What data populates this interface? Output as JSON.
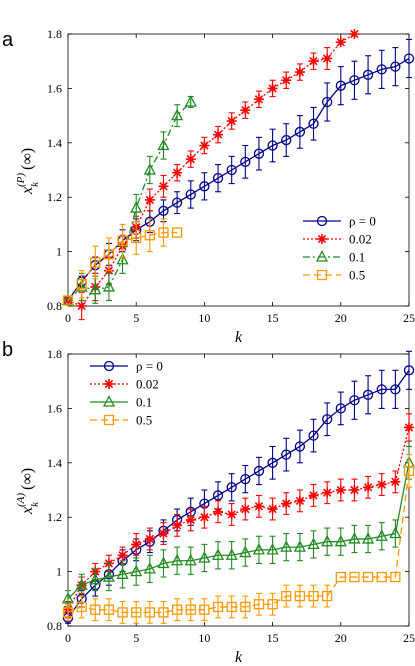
{
  "chart_data": [
    {
      "type": "line",
      "panel": "a",
      "xlabel": "k",
      "ylabel": "x_k^(P)(∞)",
      "ylabel_parts": {
        "base": "x",
        "sub": "k",
        "sup": "(P)",
        "tail": "(∞)"
      },
      "xlim": [
        0,
        25
      ],
      "ylim": [
        0.8,
        1.8
      ],
      "xticks": [
        0,
        5,
        10,
        15,
        20,
        25
      ],
      "yticks": [
        0.8,
        1,
        1.2,
        1.4,
        1.6,
        1.8
      ],
      "xtick_labels": [
        "0",
        "5",
        "10",
        "15",
        "20",
        "25"
      ],
      "ytick_labels": [
        "0.8",
        "1",
        "1.2",
        "1.4",
        "1.6",
        "1.8"
      ],
      "grid": false,
      "legend_position": "bottom-right",
      "series": [
        {
          "name": "ρ = 0",
          "color": "#00008b",
          "dash": "solid",
          "marker": "circle",
          "x": [
            0,
            1,
            2,
            3,
            4,
            5,
            6,
            7,
            8,
            9,
            10,
            11,
            12,
            13,
            14,
            15,
            16,
            17,
            18,
            19,
            20,
            21,
            22,
            23,
            24,
            25
          ],
          "y": [
            0.82,
            0.89,
            0.95,
            0.99,
            1.04,
            1.08,
            1.11,
            1.15,
            1.18,
            1.21,
            1.24,
            1.27,
            1.3,
            1.33,
            1.36,
            1.39,
            1.41,
            1.44,
            1.47,
            1.55,
            1.61,
            1.63,
            1.65,
            1.67,
            1.68,
            1.71
          ],
          "err": [
            0,
            0.02,
            0.03,
            0.04,
            0.04,
            0.04,
            0.04,
            0.04,
            0.04,
            0.05,
            0.05,
            0.05,
            0.05,
            0.06,
            0.06,
            0.06,
            0.06,
            0.06,
            0.06,
            0.07,
            0.07,
            0.07,
            0.07,
            0.07,
            0.07,
            0.07
          ]
        },
        {
          "name": "0.02",
          "color": "#ff0000",
          "dash": "dotted",
          "marker": "asterisk",
          "x": [
            0,
            1,
            2,
            3,
            4,
            5,
            6,
            7,
            8,
            9,
            10,
            11,
            12,
            13,
            14,
            15,
            16,
            17,
            18,
            19,
            20,
            21
          ],
          "y": [
            0.82,
            0.8,
            0.87,
            0.93,
            1.02,
            1.09,
            1.19,
            1.24,
            1.29,
            1.34,
            1.39,
            1.43,
            1.48,
            1.52,
            1.56,
            1.6,
            1.63,
            1.66,
            1.7,
            1.71,
            1.77,
            1.8
          ],
          "err": [
            0,
            0.05,
            0.05,
            0.05,
            0.04,
            0.04,
            0.04,
            0.04,
            0.03,
            0.03,
            0.03,
            0.03,
            0.03,
            0.03,
            0.03,
            0.03,
            0.03,
            0.03,
            0.03,
            0.04,
            0,
            0
          ]
        },
        {
          "name": "0.1",
          "color": "#228b22",
          "dash": "dashdot",
          "marker": "triangle",
          "x": [
            0,
            1,
            2,
            3,
            4,
            5,
            6,
            7,
            8,
            9
          ],
          "y": [
            0.82,
            0.87,
            0.86,
            0.87,
            0.97,
            1.16,
            1.3,
            1.39,
            1.5,
            1.55
          ],
          "err": [
            0,
            0.05,
            0.05,
            0.05,
            0.05,
            0.05,
            0.05,
            0.05,
            0.04,
            0.02
          ]
        },
        {
          "name": "0.5",
          "color": "#ff9900",
          "dash": "dashed",
          "marker": "square",
          "x": [
            0,
            1,
            2,
            3,
            4,
            5,
            6,
            7,
            8
          ],
          "y": [
            0.82,
            0.88,
            0.96,
            0.99,
            1.04,
            1.05,
            1.06,
            1.07,
            1.07
          ],
          "err": [
            0,
            0.05,
            0.06,
            0.06,
            0.06,
            0.06,
            0.06,
            0.05,
            0
          ]
        }
      ]
    },
    {
      "type": "line",
      "panel": "b",
      "xlabel": "k",
      "ylabel": "x_k^(A)(∞)",
      "ylabel_parts": {
        "base": "x",
        "sub": "k",
        "sup": "(A)",
        "tail": "(∞)"
      },
      "xlim": [
        0,
        25
      ],
      "ylim": [
        0.8,
        1.8
      ],
      "xticks": [
        0,
        5,
        10,
        15,
        20,
        25
      ],
      "yticks": [
        0.8,
        1,
        1.2,
        1.4,
        1.6,
        1.8
      ],
      "xtick_labels": [
        "0",
        "5",
        "10",
        "15",
        "20",
        "25"
      ],
      "ytick_labels": [
        "0.8",
        "1",
        "1.2",
        "1.4",
        "1.6",
        "1.8"
      ],
      "grid": false,
      "legend_position": "top-left",
      "series": [
        {
          "name": "ρ = 0",
          "color": "#00008b",
          "dash": "solid",
          "marker": "circle",
          "x": [
            0,
            1,
            2,
            3,
            4,
            5,
            6,
            7,
            8,
            9,
            10,
            11,
            12,
            13,
            14,
            15,
            16,
            17,
            18,
            19,
            20,
            21,
            22,
            23,
            24,
            25
          ],
          "y": [
            0.83,
            0.9,
            0.95,
            0.99,
            1.04,
            1.08,
            1.11,
            1.15,
            1.19,
            1.22,
            1.25,
            1.28,
            1.31,
            1.34,
            1.37,
            1.4,
            1.43,
            1.46,
            1.5,
            1.56,
            1.6,
            1.63,
            1.65,
            1.67,
            1.67,
            1.74
          ],
          "err": [
            0.02,
            0.03,
            0.04,
            0.04,
            0.04,
            0.04,
            0.04,
            0.04,
            0.04,
            0.05,
            0.05,
            0.05,
            0.05,
            0.05,
            0.05,
            0.06,
            0.06,
            0.06,
            0.06,
            0.06,
            0.06,
            0.07,
            0.07,
            0.07,
            0.07,
            0.07
          ]
        },
        {
          "name": "0.02",
          "color": "#ff0000",
          "dash": "dotted",
          "marker": "asterisk",
          "x": [
            0,
            1,
            2,
            3,
            4,
            5,
            6,
            7,
            8,
            9,
            10,
            11,
            12,
            13,
            14,
            15,
            16,
            17,
            18,
            19,
            20,
            21,
            22,
            23,
            24,
            25
          ],
          "y": [
            0.86,
            0.95,
            1.0,
            1.03,
            1.06,
            1.1,
            1.12,
            1.14,
            1.17,
            1.19,
            1.2,
            1.22,
            1.21,
            1.23,
            1.24,
            1.23,
            1.25,
            1.26,
            1.28,
            1.29,
            1.3,
            1.3,
            1.31,
            1.32,
            1.33,
            1.53
          ],
          "err": [
            0.03,
            0.03,
            0.03,
            0.03,
            0.03,
            0.04,
            0.04,
            0.04,
            0.04,
            0.04,
            0.04,
            0.04,
            0.04,
            0.04,
            0.04,
            0.04,
            0.04,
            0.04,
            0.04,
            0.04,
            0.04,
            0.04,
            0.04,
            0.04,
            0.04,
            0.05
          ]
        },
        {
          "name": "0.1",
          "color": "#228b22",
          "dash": "solid",
          "marker": "triangle",
          "x": [
            0,
            1,
            2,
            3,
            4,
            5,
            6,
            7,
            8,
            9,
            10,
            11,
            12,
            13,
            14,
            15,
            16,
            17,
            18,
            19,
            20,
            21,
            22,
            23,
            24,
            25
          ],
          "y": [
            0.9,
            0.95,
            0.97,
            0.98,
            0.99,
            1.0,
            1.01,
            1.03,
            1.04,
            1.04,
            1.05,
            1.06,
            1.06,
            1.07,
            1.08,
            1.08,
            1.09,
            1.09,
            1.1,
            1.11,
            1.11,
            1.12,
            1.12,
            1.13,
            1.14,
            1.4
          ],
          "err": [
            0.03,
            0.04,
            0.04,
            0.05,
            0.05,
            0.05,
            0.05,
            0.05,
            0.05,
            0.05,
            0.05,
            0.05,
            0.05,
            0.05,
            0.05,
            0.05,
            0.05,
            0.05,
            0.05,
            0.05,
            0.05,
            0.05,
            0.05,
            0.05,
            0.05,
            0.06
          ]
        },
        {
          "name": "0.5",
          "color": "#ff9900",
          "dash": "dashed",
          "marker": "square",
          "x": [
            0,
            1,
            2,
            3,
            4,
            5,
            6,
            7,
            8,
            9,
            10,
            11,
            12,
            13,
            14,
            15,
            16,
            17,
            18,
            19,
            20,
            21,
            22,
            23,
            24,
            25
          ],
          "y": [
            0.85,
            0.87,
            0.86,
            0.86,
            0.85,
            0.85,
            0.85,
            0.85,
            0.86,
            0.86,
            0.86,
            0.87,
            0.87,
            0.87,
            0.88,
            0.88,
            0.91,
            0.91,
            0.91,
            0.91,
            0.98,
            0.98,
            0.98,
            0.98,
            0.98,
            1.37
          ],
          "err": [
            0.03,
            0.04,
            0.04,
            0.04,
            0.04,
            0.04,
            0.04,
            0.04,
            0.04,
            0.04,
            0.04,
            0.04,
            0.04,
            0.04,
            0.04,
            0.04,
            0.04,
            0.04,
            0.04,
            0.04,
            0,
            0,
            0,
            0,
            0,
            0.06
          ]
        }
      ]
    }
  ]
}
